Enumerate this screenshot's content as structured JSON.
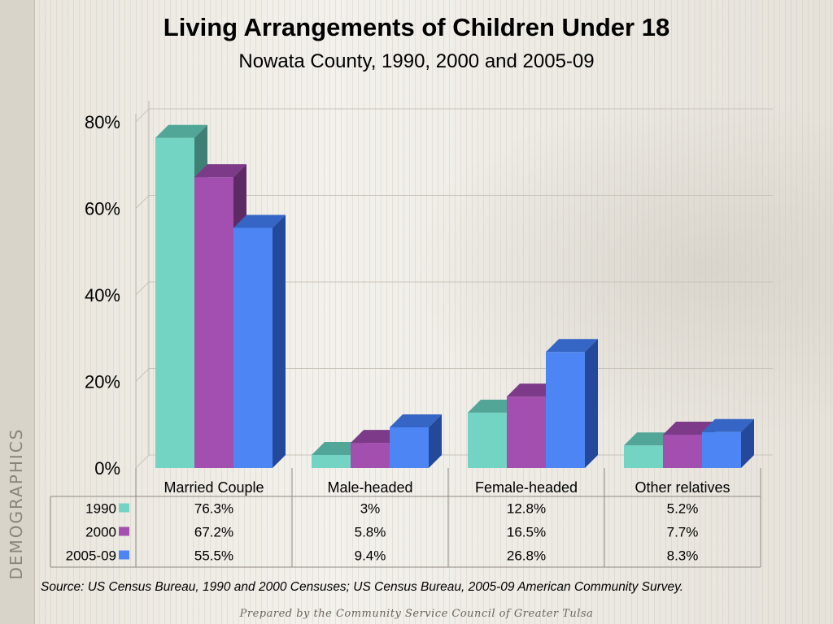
{
  "slide": {
    "side_label": "DEMOGRAPHICS",
    "source": "Source:  US Census Bureau, 1990 and 2000 Censuses; US Census Bureau, 2005-09 American Community Survey.",
    "footer": "Prepared by the Community Service Council of Greater Tulsa"
  },
  "chart_data": {
    "type": "bar",
    "title": "Living Arrangements of Children Under 18",
    "subtitle": "Nowata County, 1990, 2000 and 2005-09",
    "categories": [
      "Married Couple",
      "Male-headed",
      "Female-headed",
      "Other relatives"
    ],
    "series": [
      {
        "name": "1990",
        "values": [
          76.3,
          3,
          12.8,
          5.2
        ],
        "labels": [
          "76.3%",
          "3%",
          "12.8%",
          "5.2%"
        ],
        "color": "#74d4c4",
        "top": "#52a698",
        "side": "#3f8076"
      },
      {
        "name": "2000",
        "values": [
          67.2,
          5.8,
          16.5,
          7.7
        ],
        "labels": [
          "67.2%",
          "5.8%",
          "16.5%",
          "7.7%"
        ],
        "color": "#a24fb0",
        "top": "#7d3a88",
        "side": "#5e2a66"
      },
      {
        "name": "2005-09",
        "values": [
          55.5,
          9.4,
          26.8,
          8.3
        ],
        "labels": [
          "55.5%",
          "9.4%",
          "26.8%",
          "8.3%"
        ],
        "color": "#4d86f4",
        "top": "#3566c6",
        "side": "#24489a"
      }
    ],
    "ylim": [
      0,
      80
    ],
    "yticks": [
      0,
      20,
      40,
      60,
      80
    ],
    "ytick_labels": [
      "0%",
      "20%",
      "40%",
      "60%",
      "80%"
    ],
    "grid": true,
    "legend": "data-table"
  }
}
